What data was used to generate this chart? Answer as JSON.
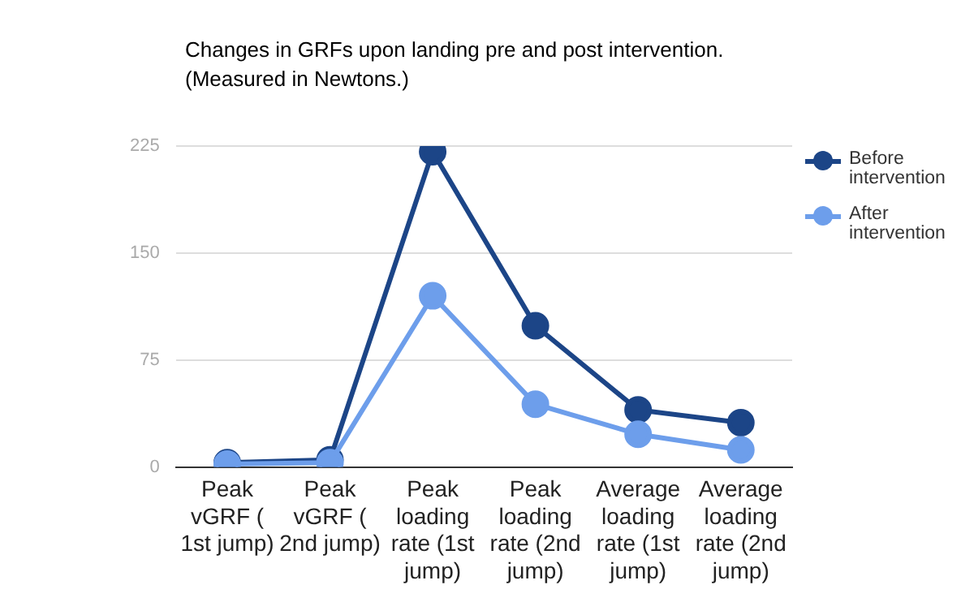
{
  "chart_data": {
    "type": "line",
    "title": "Changes in GRFs upon landing pre and post intervention. (Measured in Newtons.)",
    "categories": [
      "Peak vGRF ( 1st jump)",
      "Peak vGRF ( 2nd jump)",
      "Peak loading rate (1st jump)",
      "Peak loading rate (2nd jump)",
      "Average loading rate (1st jump)",
      "Average loading rate (2nd jump)"
    ],
    "series": [
      {
        "name": "Before intervention",
        "color": "#1c4587",
        "values": [
          3,
          5,
          221,
          99,
          40,
          31
        ]
      },
      {
        "name": "After intervention",
        "color": "#6d9eeb",
        "values": [
          2,
          3,
          120,
          44,
          23,
          12
        ]
      }
    ],
    "ylim": [
      0,
      225
    ],
    "yticks": [
      0,
      75,
      150,
      225
    ],
    "grid": "y",
    "legend": "top right",
    "marker": "circle",
    "line_style": "solid"
  }
}
